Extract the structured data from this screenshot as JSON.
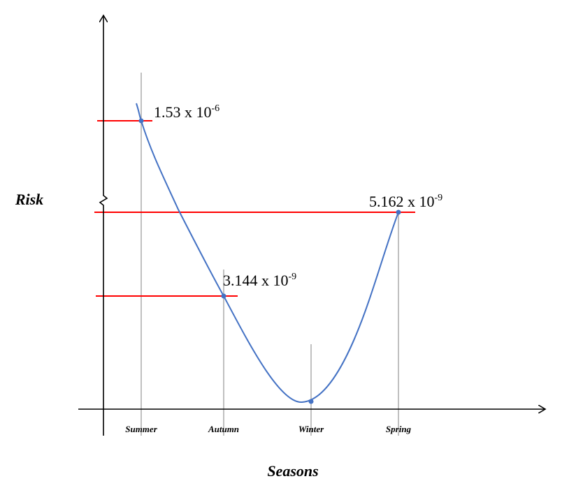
{
  "chart_data": {
    "type": "line",
    "xlabel": "Seasons",
    "ylabel": "Risk",
    "categories": [
      "Summer",
      "Autumn",
      "Winter",
      "Spring"
    ],
    "series": [
      {
        "points": [
          {
            "category": "Summer",
            "value": "1.53 x 10-6",
            "mantissa": "1.53 x 10",
            "exponent": "-6"
          },
          {
            "category": "Autumn",
            "value": "3.144 x 10-9",
            "mantissa": "3.144 x 10",
            "exponent": "-9"
          },
          {
            "category": "Winter",
            "value": null
          },
          {
            "category": "Spring",
            "value": "5.162 x 10-9",
            "mantissa": "5.162 x 10",
            "exponent": "-9"
          }
        ]
      }
    ],
    "y_axis_break": true,
    "grid": false,
    "colors": {
      "curve": "#4472c4",
      "reference_lines": "#ff0000",
      "axes": "#000000",
      "guides": "#808080"
    }
  }
}
